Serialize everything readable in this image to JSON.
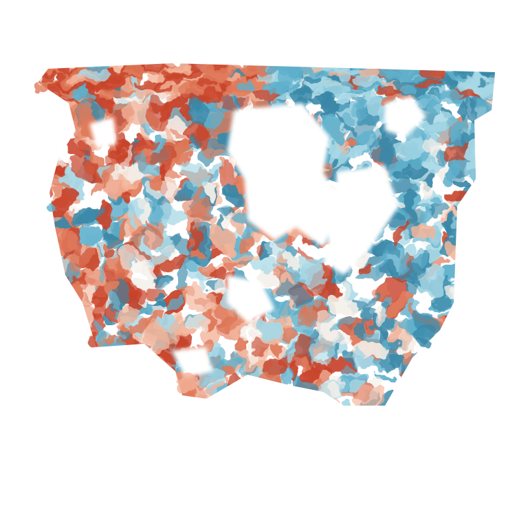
{
  "scene": {
    "description_free": true,
    "background_color": "#ffffff",
    "colormap": {
      "warm_dark": "#c8432a",
      "warm": "#e07a5a",
      "warm_light": "#f2b49a",
      "neutral": "#f4efe9",
      "cool_light": "#a7d8e6",
      "cool": "#5fb0cc",
      "cool_dark": "#3a88a8"
    }
  }
}
